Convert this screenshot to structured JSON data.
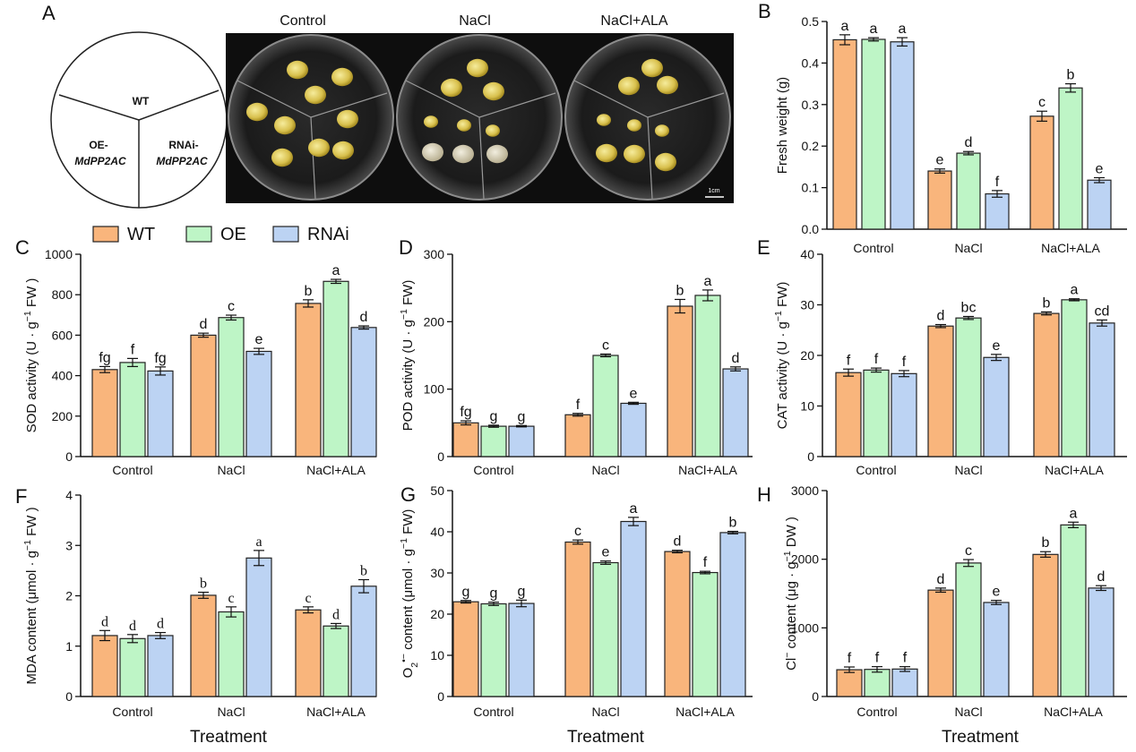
{
  "figure": {
    "panel_labels": [
      "A",
      "B",
      "C",
      "D",
      "E",
      "F",
      "G",
      "H"
    ],
    "legend": [
      {
        "name": "WT",
        "color": "#F9B57C"
      },
      {
        "name": "OE",
        "color": "#BEF5C6"
      },
      {
        "name": "RNAi",
        "color": "#BCD3F3"
      }
    ],
    "x_title": "Treatment"
  },
  "panel_a": {
    "conditions": [
      "Control",
      "NaCl",
      "NaCl+ALA"
    ],
    "sector_wt": "WT",
    "sector_oe_line1": "OE-",
    "sector_oe_line2": "MdPP2AC",
    "sector_rnai_line1": "RNAi-",
    "sector_rnai_line2": "MdPP2AC",
    "scale_label": "1cm"
  },
  "chart_data": [
    {
      "panel": "B",
      "type": "bar",
      "title": "",
      "xlabel": "",
      "ylabel": "Fresh weight (g)",
      "categories": [
        "Control",
        "NaCl",
        "NaCl+ALA"
      ],
      "ylim": [
        0,
        0.5
      ],
      "ticks": [
        0,
        0.1,
        0.2,
        0.3,
        0.4,
        0.5
      ],
      "tick_labels": [
        "0.0",
        "0.1",
        "0.2",
        "0.3",
        "0.4",
        "0.5"
      ],
      "series": [
        {
          "name": "WT",
          "values": [
            0.456,
            0.14,
            0.272
          ],
          "errors": [
            0.012,
            0.005,
            0.012
          ],
          "letters": [
            "a",
            "e",
            "c"
          ]
        },
        {
          "name": "OE",
          "values": [
            0.457,
            0.183,
            0.34
          ],
          "errors": [
            0.004,
            0.004,
            0.01
          ],
          "letters": [
            "a",
            "d",
            "b"
          ]
        },
        {
          "name": "RNAi",
          "values": [
            0.451,
            0.085,
            0.118
          ],
          "errors": [
            0.01,
            0.008,
            0.006
          ],
          "letters": [
            "a",
            "f",
            "e"
          ]
        }
      ]
    },
    {
      "panel": "C",
      "type": "bar",
      "title": "",
      "xlabel": "",
      "ylabel": "SOD activity (U · g−1 FW )",
      "categories": [
        "Control",
        "NaCl",
        "NaCl+ALA"
      ],
      "ylim": [
        0,
        1000
      ],
      "ticks": [
        0,
        200,
        400,
        600,
        800,
        1000
      ],
      "tick_labels": [
        "0",
        "200",
        "400",
        "600",
        "800",
        "1000"
      ],
      "series": [
        {
          "name": "WT",
          "values": [
            430,
            600,
            757
          ],
          "errors": [
            15,
            10,
            18
          ],
          "letters": [
            "fg",
            "d",
            "b"
          ]
        },
        {
          "name": "OE",
          "values": [
            465,
            687,
            866
          ],
          "errors": [
            20,
            12,
            10
          ],
          "letters": [
            "f",
            "c",
            "a"
          ]
        },
        {
          "name": "RNAi",
          "values": [
            423,
            520,
            638
          ],
          "errors": [
            20,
            15,
            8
          ],
          "letters": [
            "fg",
            "e",
            "d"
          ]
        }
      ]
    },
    {
      "panel": "D",
      "type": "bar",
      "title": "",
      "xlabel": "",
      "ylabel": "POD activity (U · g−1 FW)",
      "categories": [
        "Control",
        "NaCl",
        "NaCl+ALA"
      ],
      "ylim": [
        0,
        300
      ],
      "ticks": [
        0,
        100,
        200,
        300
      ],
      "tick_labels": [
        "0",
        "100",
        "200",
        "300"
      ],
      "series": [
        {
          "name": "WT",
          "values": [
            50,
            62,
            223
          ],
          "errors": [
            3,
            2,
            10
          ],
          "letters": [
            "fg",
            "f",
            "b"
          ]
        },
        {
          "name": "OE",
          "values": [
            45,
            150,
            239
          ],
          "errors": [
            1.5,
            2,
            8
          ],
          "letters": [
            "g",
            "c",
            "a"
          ]
        },
        {
          "name": "RNAi",
          "values": [
            45,
            79,
            130
          ],
          "errors": [
            1,
            1.5,
            3
          ],
          "letters": [
            "g",
            "e",
            "d"
          ]
        }
      ]
    },
    {
      "panel": "E",
      "type": "bar",
      "title": "",
      "xlabel": "",
      "ylabel": "CAT activity (U · g−1 FW)",
      "categories": [
        "Control",
        "NaCl",
        "NaCl+ALA"
      ],
      "ylim": [
        0,
        40
      ],
      "ticks": [
        0,
        10,
        20,
        30,
        40
      ],
      "tick_labels": [
        "0",
        "10",
        "20",
        "30",
        "40"
      ],
      "series": [
        {
          "name": "WT",
          "values": [
            16.6,
            25.8,
            28.3
          ],
          "errors": [
            0.7,
            0.3,
            0.3
          ],
          "letters": [
            "f",
            "d",
            "b"
          ]
        },
        {
          "name": "OE",
          "values": [
            17.1,
            27.4,
            31.0
          ],
          "errors": [
            0.4,
            0.3,
            0.2
          ],
          "letters": [
            "f",
            "bc",
            "a"
          ]
        },
        {
          "name": "RNAi",
          "values": [
            16.4,
            19.6,
            26.4
          ],
          "errors": [
            0.6,
            0.6,
            0.6
          ],
          "letters": [
            "f",
            "e",
            "cd"
          ]
        }
      ]
    },
    {
      "panel": "F",
      "type": "bar",
      "title": "",
      "xlabel": "Treatment",
      "ylabel": "MDA content (μmol · g−1 FW )",
      "categories": [
        "Control",
        "NaCl",
        "NaCl+ALA"
      ],
      "ylim": [
        0,
        4
      ],
      "ticks": [
        0,
        1,
        2,
        3,
        4
      ],
      "tick_labels": [
        "0",
        "1",
        "2",
        "3",
        "4"
      ],
      "series": [
        {
          "name": "WT",
          "values": [
            1.21,
            2.01,
            1.72
          ],
          "errors": [
            0.1,
            0.06,
            0.06
          ],
          "letters": [
            "d",
            "b",
            "c"
          ]
        },
        {
          "name": "OE",
          "values": [
            1.15,
            1.68,
            1.4
          ],
          "errors": [
            0.08,
            0.1,
            0.05
          ],
          "letters": [
            "d",
            "c",
            "d"
          ]
        },
        {
          "name": "RNAi",
          "values": [
            1.21,
            2.75,
            2.19
          ],
          "errors": [
            0.06,
            0.15,
            0.13
          ],
          "letters": [
            "d",
            "a",
            "b"
          ]
        }
      ]
    },
    {
      "panel": "G",
      "type": "bar",
      "title": "",
      "xlabel": "Treatment",
      "ylabel": "O2•− content (μmol · g−1 FW)",
      "categories": [
        "Control",
        "NaCl",
        "NaCl+ALA"
      ],
      "ylim": [
        0,
        50
      ],
      "ticks": [
        0,
        10,
        20,
        30,
        40,
        50
      ],
      "tick_labels": [
        "0",
        "10",
        "20",
        "30",
        "40",
        "50"
      ],
      "series": [
        {
          "name": "WT",
          "values": [
            23.0,
            37.5,
            35.2
          ],
          "errors": [
            0.3,
            0.5,
            0.3
          ],
          "letters": [
            "g",
            "c",
            "d"
          ]
        },
        {
          "name": "OE",
          "values": [
            22.5,
            32.5,
            30.1
          ],
          "errors": [
            0.4,
            0.4,
            0.3
          ],
          "letters": [
            "g",
            "e",
            "f"
          ]
        },
        {
          "name": "RNAi",
          "values": [
            22.6,
            42.5,
            39.8
          ],
          "errors": [
            0.8,
            1.0,
            0.3
          ],
          "letters": [
            "g",
            "a",
            "b"
          ]
        }
      ]
    },
    {
      "panel": "H",
      "type": "bar",
      "title": "",
      "xlabel": "Treatment",
      "ylabel": "Cl− content (μg · g−1 DW )",
      "categories": [
        "Control",
        "NaCl",
        "NaCl+ALA"
      ],
      "ylim": [
        0,
        3000
      ],
      "ticks": [
        0,
        1000,
        2000,
        3000
      ],
      "tick_labels": [
        "0",
        "1000",
        "2000",
        "3000"
      ],
      "series": [
        {
          "name": "WT",
          "values": [
            390,
            1550,
            2070
          ],
          "errors": [
            40,
            30,
            40
          ],
          "letters": [
            "f",
            "d",
            "b"
          ]
        },
        {
          "name": "OE",
          "values": [
            395,
            1945,
            2500
          ],
          "errors": [
            40,
            50,
            40
          ],
          "letters": [
            "f",
            "c",
            "a"
          ]
        },
        {
          "name": "RNAi",
          "values": [
            400,
            1370,
            1580
          ],
          "errors": [
            35,
            30,
            35
          ],
          "letters": [
            "f",
            "e",
            "d"
          ]
        }
      ]
    }
  ]
}
